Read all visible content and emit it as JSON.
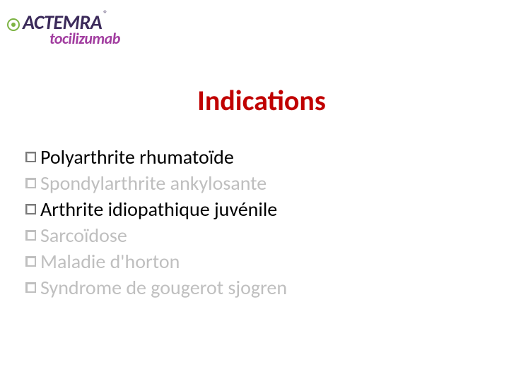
{
  "colors": {
    "brand_dark": "#3b2a5a",
    "brand_accent": "#7cb342",
    "brand_generic": "#a23ea0",
    "title": "#c00000",
    "text_active": "#000000",
    "text_muted": "#bfbfbf",
    "bullet_border": "#7a7a7a"
  },
  "logo": {
    "brand": "ACTEMRA",
    "registered": "®",
    "generic": "tocilizumab"
  },
  "title": "Indications",
  "items": [
    {
      "text": "Polyarthrite rhumatoïde",
      "muted": false
    },
    {
      "text": "Spondylarthrite ankylosante",
      "muted": true
    },
    {
      "text": "Arthrite idiopathique juvénile",
      "muted": false
    },
    {
      "text": "Sarcoïdose",
      "muted": true
    },
    {
      "text": "Maladie d'horton",
      "muted": true
    },
    {
      "text": "Syndrome de gougerot sjogren",
      "muted": true
    }
  ]
}
